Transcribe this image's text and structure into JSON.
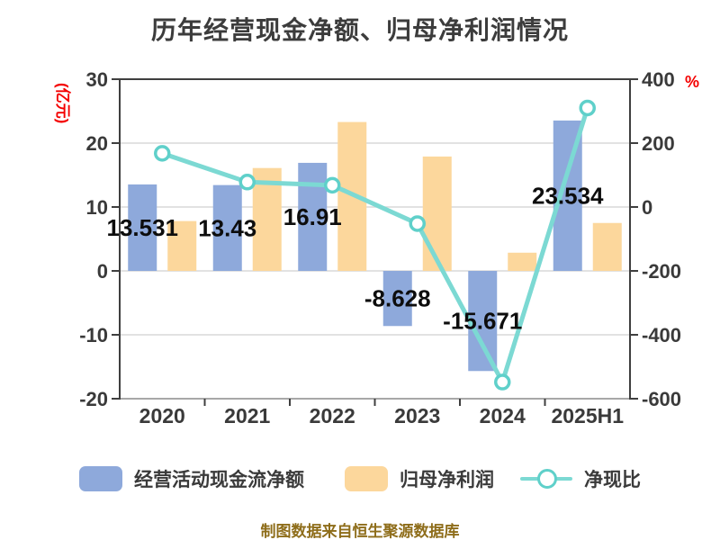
{
  "title": "历年经营现金净额、归母净利润情况",
  "footer": "制图数据来自恒生聚源数据库",
  "chart_data": {
    "type": "bar+line",
    "categories": [
      "2020",
      "2021",
      "2022",
      "2023",
      "2024",
      "2025H1"
    ],
    "series": [
      {
        "name": "经营活动现金流净额",
        "kind": "bar",
        "axis": "left",
        "color": "#8ea9db",
        "values": [
          13.531,
          13.43,
          16.91,
          -8.628,
          -15.671,
          23.534
        ],
        "value_labels": [
          "13.531",
          "13.43",
          "16.91",
          "-8.628",
          "-15.671",
          "23.534"
        ]
      },
      {
        "name": "归母净利润",
        "kind": "bar",
        "axis": "left",
        "color": "#fcd79c",
        "values": [
          7.8,
          16.1,
          23.3,
          17.9,
          2.85,
          7.5
        ]
      },
      {
        "name": "净现比",
        "kind": "line",
        "axis": "right",
        "color": "#7cd9d3",
        "marker_fill": "#ffffff",
        "marker_stroke": "#5fd0ca",
        "values": [
          168,
          78,
          68,
          -52,
          -548,
          310
        ]
      }
    ],
    "left_axis": {
      "unit_label": "(亿元)",
      "ticks": [
        30,
        20,
        10,
        0,
        -10,
        -20
      ],
      "max": 30,
      "min": -20
    },
    "right_axis": {
      "unit_label": "%",
      "ticks": [
        400,
        200,
        0,
        -200,
        -400,
        -600
      ],
      "max": 400,
      "min": -600
    },
    "grid": true,
    "legend_position": "bottom"
  },
  "colors": {
    "background": "#ffffff",
    "title_text": "#3c3c3c",
    "axis_line": "#3f3f3f",
    "bottom_spine": "#a8a8a8",
    "grid_line": "#d9d9d9",
    "tick_text": "#3a3a3a",
    "unit_label_red": "#f40000",
    "bar_value_text": "#0d0d0d",
    "footer_text": "#8e6d1a"
  }
}
